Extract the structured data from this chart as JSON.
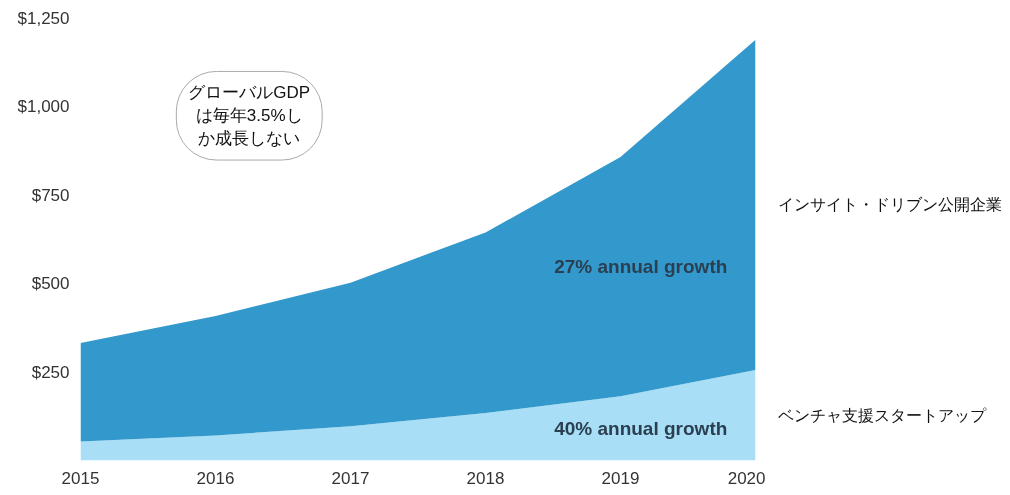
{
  "chart_data": {
    "type": "area",
    "stacked": true,
    "x": [
      2015,
      2016,
      2017,
      2018,
      2019,
      2020
    ],
    "series": [
      {
        "name": "ベンチャ支援スタートアップ",
        "color": "#a8def6",
        "values": [
          54,
          71,
          97,
          134,
          182,
          256
        ]
      },
      {
        "name": "インサイト・ドリブン公開企業",
        "color": "#3399cc",
        "values": [
          278,
          338,
          406,
          511,
          676,
          934
        ]
      }
    ],
    "xlim": [
      2015,
      2020
    ],
    "xticks": [
      2015,
      2016,
      2017,
      2018,
      2019,
      2020
    ],
    "ylim": [
      0,
      1250
    ],
    "yticks": [
      {
        "value": 250,
        "label": "$250"
      },
      {
        "value": 500,
        "label": "$500"
      },
      {
        "value": 750,
        "label": "$750"
      },
      {
        "value": 1000,
        "label": "$1,000"
      },
      {
        "value": 1250,
        "label": "$1,250"
      }
    ],
    "grid": false,
    "annotations": [
      "グローバルGDPは毎年3.5%しか成長しない",
      "27% annual growth",
      "40% annual growth"
    ]
  }
}
